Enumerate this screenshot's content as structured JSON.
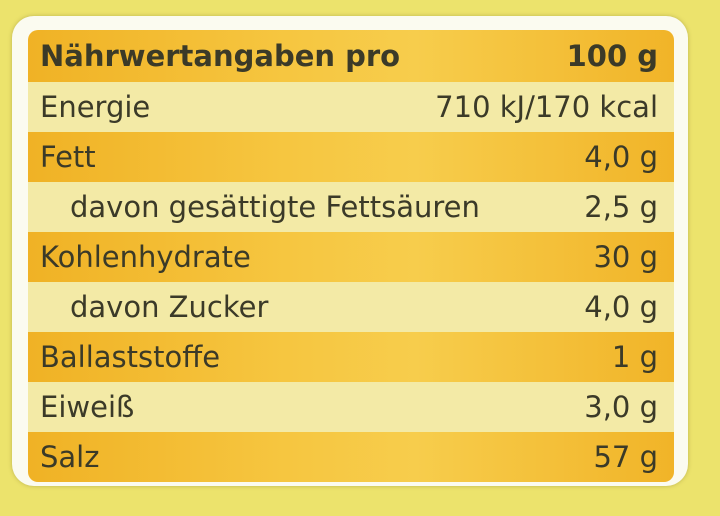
{
  "table": {
    "header": [
      "Nährwertangaben pro",
      "100 g"
    ],
    "rows": [
      [
        "Energie",
        "710 kJ/170 kcal"
      ],
      [
        "Fett",
        "4,0 g"
      ],
      [
        "davon gesättigte Fettsäuren",
        "2,5 g"
      ],
      [
        "Kohlenhydrate",
        "30 g"
      ],
      [
        "davon Zucker",
        "4,0 g"
      ],
      [
        "Ballaststoffe",
        "1 g"
      ],
      [
        "Eiweiß",
        "3,0 g"
      ],
      [
        "Salz",
        "57 g"
      ]
    ]
  }
}
